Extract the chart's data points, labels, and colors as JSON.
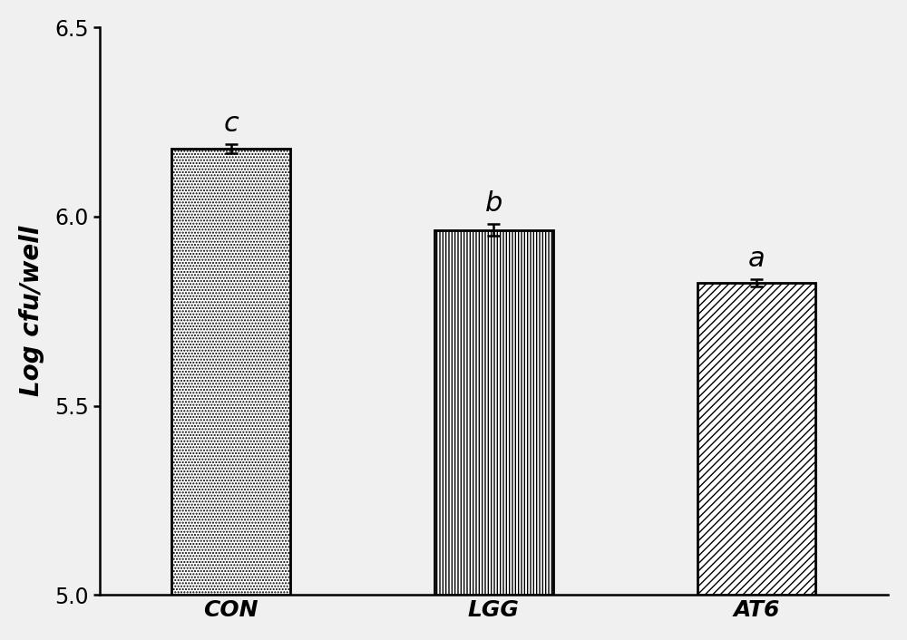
{
  "categories": [
    "CON",
    "LGG",
    "AT6"
  ],
  "values": [
    6.18,
    5.965,
    5.825
  ],
  "errors": [
    0.012,
    0.015,
    0.01
  ],
  "letters": [
    "c",
    "b",
    "a"
  ],
  "bar_color": "white",
  "bar_edgecolor": "black",
  "ylabel": "Log cfu/well",
  "ylim": [
    5.0,
    6.5
  ],
  "yticks": [
    5.0,
    5.5,
    6.0,
    6.5
  ],
  "bar_width": 0.45,
  "bar_positions": [
    0.5,
    1.5,
    2.5
  ],
  "xlim": [
    0.0,
    3.0
  ],
  "figsize": [
    10.0,
    7.06
  ],
  "dpi": 100,
  "label_fontsize": 20,
  "tick_fontsize": 17,
  "letter_fontsize": 22,
  "xtick_fontsize": 18,
  "background_color": "#f0f0f0"
}
